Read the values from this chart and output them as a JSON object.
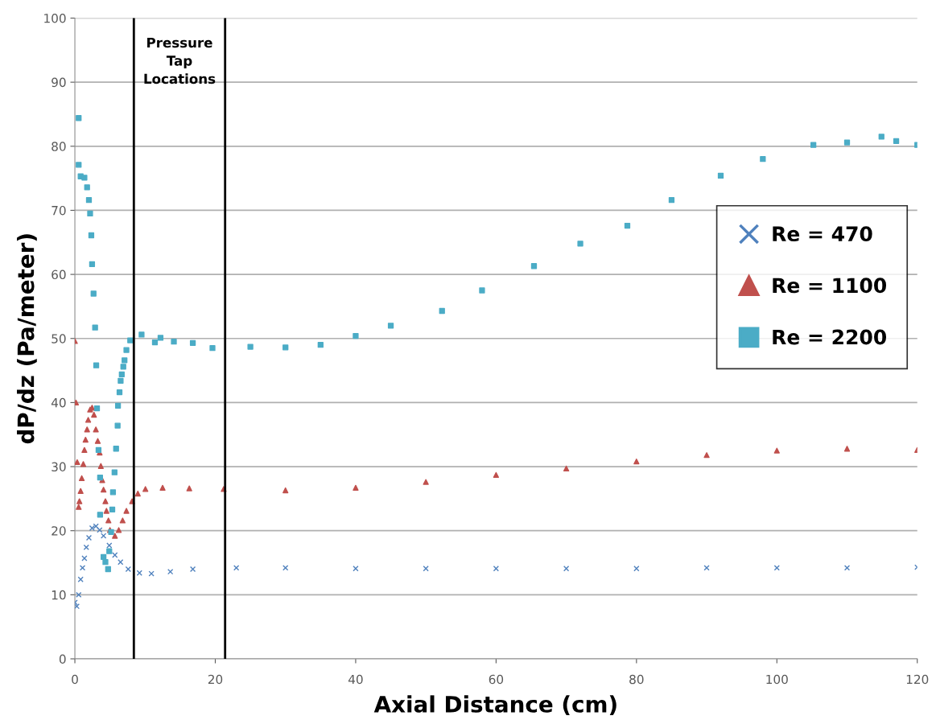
{
  "chart_data": {
    "type": "scatter",
    "xlabel": "Axial Distance (cm)",
    "ylabel": "dP/dz (Pa/meter)",
    "xlim": [
      0,
      120
    ],
    "xticks": [
      0,
      20,
      40,
      60,
      80,
      100,
      120
    ],
    "ylim": [
      0,
      100
    ],
    "yticks": [
      0,
      10,
      20,
      30,
      40,
      50,
      60,
      70,
      80,
      90,
      100
    ],
    "grid": "y",
    "legend": "right",
    "annotations": [
      "Pressure Tap Locations"
    ],
    "ref_lines": [
      {
        "axis": "x",
        "value": 8.4,
        "color": "#000000"
      },
      {
        "axis": "x",
        "value": 21.4,
        "color": "#000000"
      }
    ],
    "series": [
      {
        "name": "Re = 470",
        "color": "#4f81bd",
        "marker": "cross",
        "x": [
          0.0,
          0.27,
          0.54,
          0.82,
          1.09,
          1.36,
          1.63,
          2.0,
          2.45,
          3.0,
          3.53,
          4.08,
          4.9,
          5.7,
          6.5,
          7.6,
          9.2,
          10.9,
          13.6,
          16.8,
          23.0,
          30,
          40,
          50,
          60,
          70,
          80,
          90,
          100,
          110,
          120
        ],
        "values": [
          8.8,
          8.2,
          10.0,
          12.4,
          14.2,
          15.7,
          17.4,
          18.9,
          20.4,
          20.7,
          20.1,
          19.2,
          17.7,
          16.2,
          15.1,
          14.0,
          13.4,
          13.3,
          13.6,
          14.0,
          14.2,
          14.2,
          14.1,
          14.1,
          14.1,
          14.1,
          14.1,
          14.2,
          14.2,
          14.2,
          14.3
        ]
      },
      {
        "name": "Re = 1100",
        "color": "#c0504d",
        "marker": "triangle",
        "x": [
          0.0,
          0.16,
          0.33,
          0.54,
          0.65,
          0.82,
          0.98,
          1.2,
          1.36,
          1.52,
          1.74,
          1.9,
          2.17,
          2.45,
          2.72,
          2.99,
          3.26,
          3.53,
          3.7,
          3.9,
          4.08,
          4.35,
          4.5,
          4.78,
          5.0,
          5.7,
          6.25,
          6.8,
          7.34,
          8.15,
          8.97,
          10.05,
          12.5,
          16.3,
          21.2,
          30,
          40,
          50,
          60,
          70,
          80,
          90,
          100,
          110,
          120
        ],
        "values": [
          49.6,
          40.0,
          30.7,
          23.7,
          24.6,
          26.2,
          28.2,
          30.4,
          32.6,
          34.2,
          35.8,
          37.3,
          38.9,
          39.2,
          38.1,
          35.8,
          34.0,
          32.2,
          30.1,
          27.9,
          26.4,
          24.6,
          23.1,
          21.6,
          20.1,
          19.2,
          20.1,
          21.6,
          23.1,
          24.6,
          25.8,
          26.5,
          26.7,
          26.6,
          26.5,
          26.3,
          26.7,
          27.6,
          28.7,
          29.7,
          30.8,
          31.8,
          32.5,
          32.8,
          32.6
        ]
      },
      {
        "name": "Re = 2200",
        "color": "#4bacc6",
        "marker": "square",
        "x": [
          0.54,
          0.54,
          0.82,
          1.36,
          1.74,
          2.0,
          2.17,
          2.34,
          2.45,
          2.66,
          2.88,
          3.04,
          3.15,
          3.37,
          3.59,
          3.59,
          4.08,
          4.35,
          4.73,
          4.9,
          5.16,
          5.33,
          5.43,
          5.65,
          5.87,
          6.09,
          6.14,
          6.36,
          6.52,
          6.68,
          6.9,
          7.07,
          7.34,
          7.88,
          9.5,
          11.4,
          12.2,
          14.1,
          16.8,
          19.6,
          25,
          30,
          35,
          40,
          45,
          52.3,
          58,
          65.4,
          72,
          78.7,
          85,
          92,
          98,
          105.2,
          110,
          114.9,
          117,
          120
        ],
        "values": [
          84.4,
          77.1,
          75.3,
          75.1,
          73.6,
          71.6,
          69.5,
          66.1,
          61.6,
          57.0,
          51.7,
          45.8,
          39.1,
          32.6,
          28.3,
          22.5,
          15.9,
          15.1,
          14.0,
          16.8,
          19.8,
          23.3,
          26.0,
          29.1,
          32.8,
          36.4,
          39.5,
          41.6,
          43.4,
          44.4,
          45.6,
          46.6,
          48.2,
          49.7,
          50.6,
          49.4,
          50.1,
          49.5,
          49.3,
          48.5,
          48.7,
          48.6,
          49.0,
          50.4,
          52.0,
          54.3,
          57.5,
          61.3,
          64.8,
          67.6,
          71.6,
          75.4,
          78.0,
          80.2,
          80.6,
          81.5,
          80.8,
          80.2
        ]
      }
    ]
  }
}
